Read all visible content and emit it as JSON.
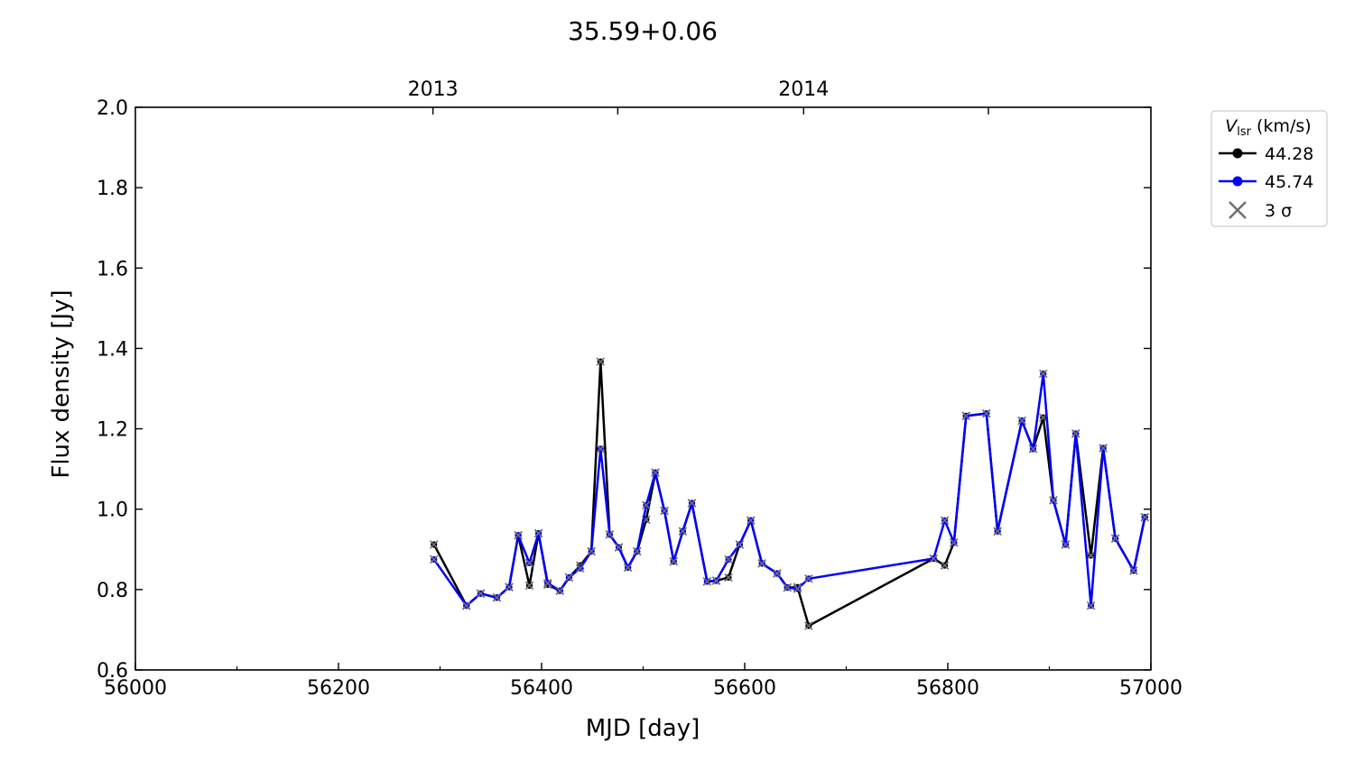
{
  "chart_data": {
    "type": "line",
    "title": "35.59+0.06",
    "xlabel": "MJD [day]",
    "ylabel": "Flux density [Jy]",
    "xlim": [
      56000,
      57000
    ],
    "ylim": [
      0.6,
      2.0
    ],
    "xticks": [
      56000,
      56200,
      56400,
      56600,
      56800,
      57000
    ],
    "yticks": [
      0.6,
      0.8,
      1.0,
      1.2,
      1.4,
      1.6,
      1.8,
      2.0
    ],
    "xtick_labels": [
      "56000",
      "56200",
      "56400",
      "56600",
      "56800",
      "57000"
    ],
    "ytick_labels": [
      "0.6",
      "0.8",
      "1.0",
      "1.2",
      "1.4",
      "1.6",
      "1.8",
      "2.0"
    ],
    "top_axis": {
      "ticks": [
        56293,
        56475,
        56658,
        56840
      ],
      "labels": [
        {
          "x": 56293,
          "text": "2013"
        },
        {
          "x": 56658,
          "text": "2014"
        }
      ]
    },
    "legend": {
      "title_main": "V",
      "title_sub": "lsr",
      "title_rest": " (km/s)",
      "placement": "outside-top-right",
      "sigma_label": "3 σ"
    },
    "colors": {
      "black_series": "#000000",
      "blue_series": "#0000ff",
      "sigma_marker": "#707070"
    },
    "x": [
      56294,
      56326,
      56340,
      56356,
      56368,
      56377,
      56388,
      56397,
      56406,
      56418,
      56427,
      56438,
      56449,
      56458,
      56467,
      56476,
      56485,
      56494,
      56503,
      56512,
      56521,
      56530,
      56539,
      56548,
      56563,
      56572,
      56584,
      56595,
      56606,
      56617,
      56632,
      56642,
      56652,
      56663,
      56786,
      56797,
      56806,
      56818,
      56838,
      56849,
      56873,
      56884,
      56894,
      56904,
      56916,
      56926,
      56941,
      56953,
      56965,
      56983,
      56994
    ],
    "series": [
      {
        "name": "44.28",
        "color": "#000000",
        "values": [
          0.912,
          0.76,
          0.79,
          0.78,
          0.806,
          0.935,
          0.81,
          0.94,
          0.812,
          0.797,
          0.83,
          0.86,
          0.895,
          1.367,
          0.937,
          0.905,
          0.855,
          0.895,
          0.974,
          1.091,
          0.996,
          0.87,
          0.945,
          1.015,
          0.82,
          0.822,
          0.83,
          0.912,
          0.972,
          0.865,
          0.84,
          0.805,
          0.806,
          0.71,
          0.877,
          0.86,
          0.917,
          1.232,
          1.238,
          0.945,
          1.22,
          1.15,
          1.228,
          1.022,
          0.912,
          1.188,
          0.885,
          1.152,
          0.927,
          0.847,
          0.98
        ]
      },
      {
        "name": "45.74",
        "color": "#0000ff",
        "values": [
          0.875,
          0.76,
          0.79,
          0.78,
          0.806,
          0.935,
          0.866,
          0.94,
          0.816,
          0.797,
          0.83,
          0.853,
          0.895,
          1.15,
          0.937,
          0.905,
          0.855,
          0.895,
          1.01,
          1.091,
          0.996,
          0.87,
          0.945,
          1.015,
          0.82,
          0.822,
          0.875,
          0.912,
          0.972,
          0.865,
          0.84,
          0.805,
          0.802,
          0.827,
          0.877,
          0.972,
          0.917,
          1.232,
          1.238,
          0.945,
          1.22,
          1.15,
          1.337,
          1.022,
          0.912,
          1.188,
          0.76,
          1.152,
          0.927,
          0.847,
          0.98
        ]
      }
    ]
  }
}
